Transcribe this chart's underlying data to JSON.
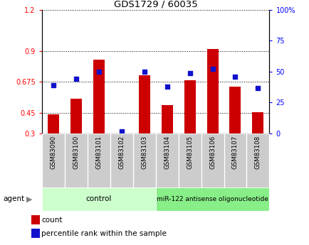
{
  "title": "GDS1729 / 60035",
  "samples": [
    "GSM83090",
    "GSM83100",
    "GSM83101",
    "GSM83102",
    "GSM83103",
    "GSM83104",
    "GSM83105",
    "GSM83106",
    "GSM83107",
    "GSM83108"
  ],
  "red_values": [
    0.44,
    0.555,
    0.835,
    0.302,
    0.725,
    0.505,
    0.685,
    0.915,
    0.64,
    0.453
  ],
  "blue_values": [
    39,
    44,
    50,
    2,
    50,
    38,
    49,
    52,
    46,
    37
  ],
  "ylim_left": [
    0.3,
    1.2
  ],
  "ylim_right": [
    0,
    100
  ],
  "yticks_left": [
    0.3,
    0.45,
    0.675,
    0.9,
    1.2
  ],
  "ytick_labels_left": [
    "0.3",
    "0.45",
    "0.675",
    "0.9",
    "1.2"
  ],
  "yticks_right": [
    0,
    25,
    50,
    75,
    100
  ],
  "ytick_labels_right": [
    "0",
    "25",
    "50",
    "75",
    "100%"
  ],
  "hlines": [
    0.45,
    0.675,
    0.9
  ],
  "control_samples": 5,
  "control_label": "control",
  "treatment_label": "miR-122 antisense oligonucleotide",
  "agent_label": "agent",
  "legend_red": "count",
  "legend_blue": "percentile rank within the sample",
  "bar_color": "#cc0000",
  "dot_color": "#1111cc",
  "control_bg": "#ccffcc",
  "treatment_bg": "#88ee88",
  "xticklabel_bg": "#cccccc",
  "plot_bg": "#ffffff",
  "bar_width": 0.5
}
